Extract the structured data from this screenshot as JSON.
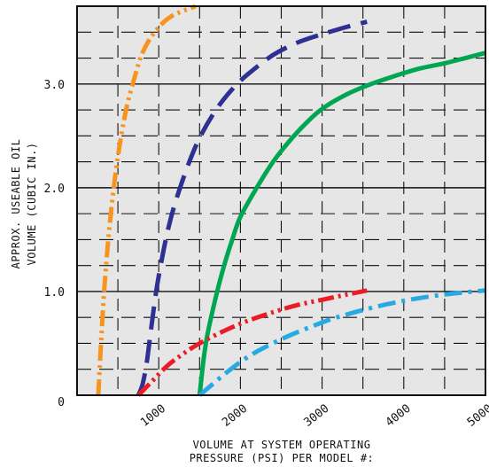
{
  "chart_data": {
    "type": "line",
    "title": "",
    "xlabel": [
      "VOLUME AT SYSTEM OPERATING",
      "PRESSURE (PSI) PER MODEL #:"
    ],
    "ylabel": [
      "APPROX. USEABLE OIL",
      "VOLUME (CUBIC IN.)"
    ],
    "xlim": [
      0,
      5000
    ],
    "ylim": [
      0,
      3.75
    ],
    "x_ticks": [
      {
        "value": 1000,
        "label": "1000"
      },
      {
        "value": 2000,
        "label": "2000"
      },
      {
        "value": 3000,
        "label": "3000"
      },
      {
        "value": 4000,
        "label": "4000"
      },
      {
        "value": 5000,
        "label": "5000"
      }
    ],
    "y_ticks": [
      {
        "value": 0,
        "label": "0"
      },
      {
        "value": 1.0,
        "label": "1.0"
      },
      {
        "value": 2.0,
        "label": "2.0"
      },
      {
        "value": 3.0,
        "label": "3.0"
      }
    ],
    "grid": true,
    "series": [
      {
        "color": "#f7941d",
        "dash": "dash-dot-dot",
        "points": [
          [
            260,
            0
          ],
          [
            300,
            0.6
          ],
          [
            350,
            1.2
          ],
          [
            420,
            1.8
          ],
          [
            500,
            2.3
          ],
          [
            600,
            2.75
          ],
          [
            700,
            3.05
          ],
          [
            800,
            3.3
          ],
          [
            950,
            3.5
          ],
          [
            1150,
            3.65
          ],
          [
            1450,
            3.75
          ]
        ]
      },
      {
        "color": "#2e3192",
        "dash": "long-dash",
        "points": [
          [
            750,
            0
          ],
          [
            800,
            0.1
          ],
          [
            850,
            0.3
          ],
          [
            900,
            0.6
          ],
          [
            950,
            0.9
          ],
          [
            1000,
            1.15
          ],
          [
            1100,
            1.55
          ],
          [
            1200,
            1.85
          ],
          [
            1350,
            2.2
          ],
          [
            1500,
            2.48
          ],
          [
            1700,
            2.75
          ],
          [
            1900,
            2.95
          ],
          [
            2100,
            3.1
          ],
          [
            2400,
            3.28
          ],
          [
            2700,
            3.4
          ],
          [
            3000,
            3.48
          ],
          [
            3300,
            3.55
          ],
          [
            3550,
            3.6
          ]
        ]
      },
      {
        "color": "#00a651",
        "dash": "solid",
        "points": [
          [
            1500,
            0
          ],
          [
            1550,
            0.35
          ],
          [
            1600,
            0.6
          ],
          [
            1700,
            0.95
          ],
          [
            1800,
            1.25
          ],
          [
            1900,
            1.5
          ],
          [
            2000,
            1.72
          ],
          [
            2200,
            2.0
          ],
          [
            2400,
            2.25
          ],
          [
            2600,
            2.45
          ],
          [
            2800,
            2.62
          ],
          [
            3000,
            2.76
          ],
          [
            3300,
            2.9
          ],
          [
            3600,
            3.0
          ],
          [
            3900,
            3.08
          ],
          [
            4200,
            3.15
          ],
          [
            4500,
            3.2
          ],
          [
            4800,
            3.26
          ],
          [
            5000,
            3.3
          ]
        ]
      },
      {
        "color": "#ed1c24",
        "dash": "dash-dot-dot",
        "points": [
          [
            750,
            0
          ],
          [
            900,
            0.12
          ],
          [
            1100,
            0.28
          ],
          [
            1300,
            0.4
          ],
          [
            1500,
            0.5
          ],
          [
            1800,
            0.62
          ],
          [
            2100,
            0.72
          ],
          [
            2400,
            0.8
          ],
          [
            2700,
            0.87
          ],
          [
            3000,
            0.92
          ],
          [
            3300,
            0.97
          ],
          [
            3550,
            1.01
          ]
        ]
      },
      {
        "color": "#27aae1",
        "dash": "dash-dot",
        "points": [
          [
            1500,
            0
          ],
          [
            1650,
            0.1
          ],
          [
            1800,
            0.2
          ],
          [
            2000,
            0.32
          ],
          [
            2200,
            0.42
          ],
          [
            2500,
            0.54
          ],
          [
            2800,
            0.64
          ],
          [
            3100,
            0.73
          ],
          [
            3400,
            0.8
          ],
          [
            3700,
            0.86
          ],
          [
            4000,
            0.91
          ],
          [
            4300,
            0.95
          ],
          [
            4600,
            0.98
          ],
          [
            5000,
            1.01
          ]
        ]
      }
    ]
  }
}
